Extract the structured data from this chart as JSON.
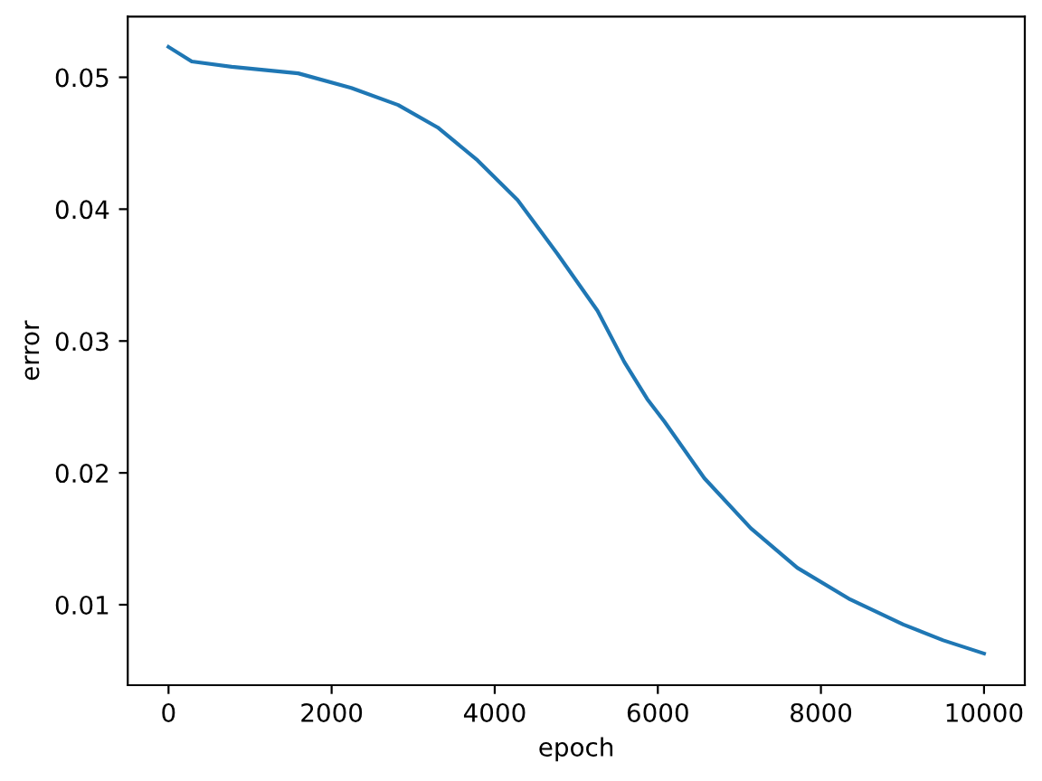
{
  "chart_data": {
    "type": "line",
    "xlabel": "epoch",
    "ylabel": "error",
    "series": [
      {
        "color": "#1f77b4",
        "x": [
          0,
          285,
          775,
          1590,
          2240,
          2815,
          3300,
          3790,
          4280,
          4770,
          5260,
          5590,
          5870,
          6080,
          6570,
          7140,
          7710,
          8360,
          9010,
          9500,
          10000
        ],
        "values": [
          0.0523,
          0.0512,
          0.0508,
          0.0503,
          0.0492,
          0.0479,
          0.0462,
          0.0437,
          0.0407,
          0.0366,
          0.0323,
          0.0284,
          0.0256,
          0.0239,
          0.0196,
          0.0158,
          0.0128,
          0.0104,
          0.0085,
          0.0073,
          0.0063
        ]
      }
    ],
    "xlim": [
      -500,
      10500
    ],
    "ylim": [
      0.0039,
      0.0546
    ],
    "xticks": [
      0,
      2000,
      4000,
      6000,
      8000,
      10000
    ],
    "yticks": [
      0.01,
      0.02,
      0.03,
      0.04,
      0.05
    ],
    "marker": "none",
    "line_style": "solid"
  }
}
